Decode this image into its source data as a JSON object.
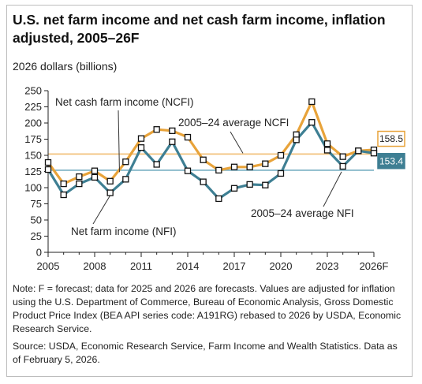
{
  "title": "U.S. net farm income and net cash farm income, inflation adjusted, 2005–26F",
  "ylabel": "2026 dollars (billions)",
  "note": "Note: F = forecast; data for 2025 and 2026 are forecasts. Values are adjusted for inflation using the U.S. Department of Commerce, Bureau of Economic Analysis, Gross Domestic Product Price Index (BEA API series code: A191RG) rebased to 2026 by USDA, Economic Research Service.",
  "source": "Source: USDA, Economic Research Service, Farm Income and Wealth Statistics. Data as of February 5, 2026.",
  "chart_data": {
    "type": "line",
    "x": [
      2005,
      2006,
      2007,
      2008,
      2009,
      2010,
      2011,
      2012,
      2013,
      2014,
      2015,
      2016,
      2017,
      2018,
      2019,
      2020,
      2021,
      2022,
      2023,
      2024,
      2025,
      2026
    ],
    "x_tick_labels": [
      "2005",
      "2008",
      "2011",
      "2014",
      "2017",
      "2020",
      "2023",
      "2026F"
    ],
    "x_tick_values": [
      2005,
      2008,
      2011,
      2014,
      2017,
      2020,
      2023,
      2026
    ],
    "y_ticks": [
      0,
      25,
      50,
      75,
      100,
      125,
      150,
      175,
      200,
      225,
      250
    ],
    "ylim": [
      0,
      250
    ],
    "grid": false,
    "series": [
      {
        "name": "Net cash farm income (NCFI)",
        "color": "#e8a33a",
        "values": [
          139,
          106,
          117,
          126,
          110,
          140,
          176,
          190,
          188,
          178,
          143,
          127,
          132,
          132,
          137,
          150,
          182,
          233,
          168,
          148,
          157,
          158.5
        ]
      },
      {
        "name": "Net farm income (NFI)",
        "color": "#3e7f93",
        "values": [
          128,
          89,
          106,
          116,
          92,
          113,
          162,
          136,
          171,
          126,
          109,
          83,
          99,
          105,
          104,
          122,
          174,
          201,
          158,
          133,
          157,
          153.4
        ]
      }
    ],
    "reference_lines": [
      {
        "name": "2005–24 average NCFI",
        "value": 152,
        "color": "#f2c27d"
      },
      {
        "name": "2005–24 average NFI",
        "value": 127,
        "color": "#7fb3c6"
      }
    ],
    "end_labels": [
      {
        "text": "158.5",
        "color": "#e8a33a"
      },
      {
        "text": "153.4",
        "color": "#3e7f93"
      }
    ]
  }
}
